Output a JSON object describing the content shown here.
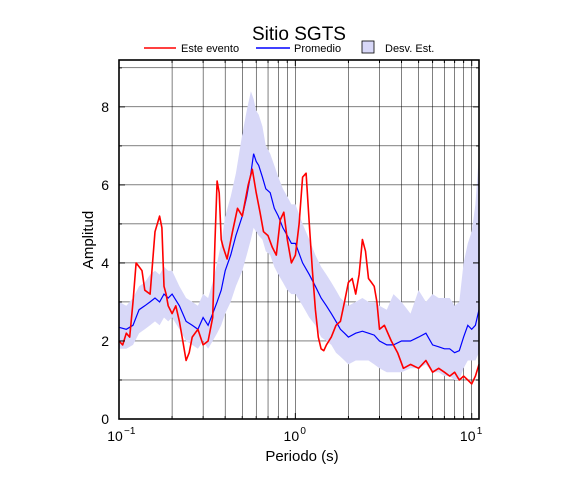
{
  "chart_data": {
    "type": "line",
    "title": "Sitio SGTS",
    "xlabel": "Periodo (s)",
    "ylabel": "Amplitud",
    "x_scale": "log",
    "xlim": [
      0.1,
      11
    ],
    "ylim": [
      0,
      9.2
    ],
    "grid": true,
    "legend_position": "top",
    "x_ticks": [
      {
        "value": 0.1,
        "base": "10",
        "exp": "−1"
      },
      {
        "value": 1,
        "base": "10",
        "exp": "0"
      },
      {
        "value": 10,
        "base": "10",
        "exp": "1"
      }
    ],
    "y_ticks": [
      0,
      2,
      4,
      6,
      8
    ],
    "legend": {
      "este_evento": "Este evento",
      "promedio": "Promedio",
      "desv_est": "Desv. Est."
    },
    "colors": {
      "este_evento": "#ff0000",
      "promedio": "#0000ff",
      "band_fill": "#d8d8f8",
      "band_stroke": "#c0c0f0"
    },
    "series": [
      {
        "name": "Este evento",
        "x": [
          0.1,
          0.105,
          0.11,
          0.115,
          0.12,
          0.125,
          0.13,
          0.135,
          0.14,
          0.15,
          0.16,
          0.17,
          0.175,
          0.18,
          0.185,
          0.19,
          0.2,
          0.21,
          0.22,
          0.23,
          0.24,
          0.25,
          0.26,
          0.28,
          0.3,
          0.32,
          0.34,
          0.35,
          0.36,
          0.37,
          0.38,
          0.39,
          0.41,
          0.44,
          0.47,
          0.5,
          0.54,
          0.57,
          0.6,
          0.63,
          0.66,
          0.7,
          0.74,
          0.78,
          0.82,
          0.86,
          0.9,
          0.95,
          1.0,
          1.05,
          1.1,
          1.15,
          1.2,
          1.25,
          1.3,
          1.35,
          1.4,
          1.45,
          1.5,
          1.6,
          1.7,
          1.8,
          1.9,
          2.0,
          2.1,
          2.2,
          2.3,
          2.4,
          2.5,
          2.6,
          2.7,
          2.8,
          2.9,
          3.0,
          3.2,
          3.5,
          3.8,
          4.1,
          4.5,
          5.0,
          5.5,
          6.0,
          6.5,
          7.0,
          7.5,
          8.0,
          8.5,
          9.0,
          9.5,
          10.0,
          10.5,
          11.0
        ],
        "values": [
          2.0,
          1.9,
          2.2,
          2.1,
          3.0,
          4.0,
          3.9,
          3.8,
          3.3,
          3.2,
          4.8,
          5.2,
          4.9,
          3.4,
          3.2,
          2.9,
          2.7,
          2.9,
          2.5,
          2.0,
          1.5,
          1.7,
          2.1,
          2.3,
          1.9,
          2.0,
          2.6,
          4.5,
          6.1,
          5.8,
          4.6,
          4.4,
          4.1,
          4.8,
          5.4,
          5.2,
          6.0,
          6.4,
          5.8,
          5.3,
          4.8,
          4.7,
          4.4,
          4.2,
          5.1,
          5.3,
          4.6,
          4.0,
          4.2,
          5.0,
          6.2,
          6.3,
          5.0,
          3.8,
          2.8,
          2.1,
          1.8,
          1.75,
          1.9,
          2.1,
          2.4,
          2.5,
          3.0,
          3.5,
          3.6,
          3.2,
          3.7,
          4.6,
          4.3,
          3.6,
          3.5,
          3.4,
          3.0,
          2.3,
          2.4,
          2.0,
          1.7,
          1.3,
          1.4,
          1.3,
          1.5,
          1.2,
          1.3,
          1.2,
          1.1,
          1.2,
          1.0,
          1.1,
          1.0,
          0.9,
          1.1,
          1.4
        ]
      },
      {
        "name": "Promedio",
        "x": [
          0.1,
          0.11,
          0.12,
          0.13,
          0.14,
          0.15,
          0.16,
          0.17,
          0.18,
          0.19,
          0.2,
          0.22,
          0.24,
          0.26,
          0.28,
          0.3,
          0.32,
          0.34,
          0.36,
          0.38,
          0.4,
          0.43,
          0.46,
          0.5,
          0.53,
          0.56,
          0.58,
          0.6,
          0.62,
          0.65,
          0.68,
          0.72,
          0.76,
          0.8,
          0.85,
          0.9,
          0.95,
          1.0,
          1.1,
          1.2,
          1.3,
          1.4,
          1.5,
          1.6,
          1.7,
          1.8,
          1.9,
          2.0,
          2.2,
          2.4,
          2.6,
          2.8,
          3.0,
          3.3,
          3.6,
          4.0,
          4.5,
          5.0,
          5.5,
          6.0,
          6.5,
          7.0,
          7.5,
          8.0,
          8.5,
          9.0,
          9.5,
          10.0,
          10.5,
          11.0
        ],
        "values": [
          2.35,
          2.3,
          2.4,
          2.8,
          2.9,
          3.0,
          3.1,
          3.0,
          3.2,
          3.1,
          3.2,
          2.9,
          2.5,
          2.4,
          2.3,
          2.6,
          2.4,
          2.7,
          3.0,
          3.3,
          3.8,
          4.2,
          4.7,
          5.2,
          5.7,
          6.3,
          6.8,
          6.6,
          6.5,
          6.2,
          5.9,
          5.8,
          5.4,
          5.2,
          4.9,
          4.7,
          4.5,
          4.5,
          4.0,
          3.7,
          3.4,
          3.1,
          2.9,
          2.7,
          2.5,
          2.3,
          2.2,
          2.1,
          2.2,
          2.25,
          2.2,
          2.15,
          2.0,
          1.9,
          1.9,
          2.0,
          2.0,
          2.1,
          2.2,
          1.9,
          1.85,
          1.8,
          1.8,
          1.7,
          1.75,
          2.1,
          2.4,
          2.3,
          2.4,
          2.8
        ]
      }
    ],
    "band": {
      "name": "Desv. Est.",
      "x": [
        0.1,
        0.11,
        0.12,
        0.13,
        0.14,
        0.15,
        0.16,
        0.17,
        0.18,
        0.19,
        0.2,
        0.22,
        0.24,
        0.26,
        0.28,
        0.3,
        0.32,
        0.34,
        0.36,
        0.38,
        0.4,
        0.43,
        0.46,
        0.5,
        0.53,
        0.56,
        0.58,
        0.6,
        0.62,
        0.65,
        0.68,
        0.72,
        0.76,
        0.8,
        0.85,
        0.9,
        0.95,
        1.0,
        1.1,
        1.2,
        1.3,
        1.4,
        1.5,
        1.6,
        1.7,
        1.8,
        1.9,
        2.0,
        2.2,
        2.4,
        2.6,
        2.8,
        3.0,
        3.3,
        3.6,
        4.0,
        4.5,
        5.0,
        5.5,
        6.0,
        6.5,
        7.0,
        7.5,
        8.0,
        8.5,
        9.0,
        9.5,
        10.0,
        10.5,
        11.0
      ],
      "upper": [
        3.0,
        2.9,
        3.1,
        3.4,
        3.5,
        3.7,
        3.8,
        3.7,
        3.9,
        3.8,
        3.8,
        3.4,
        3.1,
        3.0,
        2.9,
        3.2,
        3.1,
        3.5,
        4.0,
        4.5,
        5.2,
        5.7,
        6.3,
        7.3,
        7.9,
        8.4,
        8.2,
        7.9,
        7.8,
        7.5,
        7.0,
        6.8,
        6.5,
        6.2,
        5.9,
        5.7,
        5.5,
        5.5,
        5.0,
        4.6,
        4.2,
        3.9,
        3.7,
        3.5,
        3.3,
        3.1,
        3.0,
        2.9,
        3.0,
        3.1,
        3.0,
        3.0,
        2.9,
        2.8,
        3.2,
        3.0,
        2.7,
        3.3,
        3.0,
        3.2,
        3.1,
        3.1,
        3.1,
        2.9,
        3.0,
        4.0,
        4.5,
        4.8,
        5.5,
        6.8
      ],
      "lower": [
        1.8,
        1.8,
        1.9,
        2.2,
        2.3,
        2.4,
        2.5,
        2.4,
        2.6,
        2.5,
        2.6,
        2.3,
        2.0,
        1.9,
        1.8,
        2.0,
        1.8,
        2.0,
        2.2,
        2.4,
        2.7,
        3.0,
        3.4,
        3.8,
        4.2,
        4.6,
        4.9,
        4.8,
        4.7,
        4.6,
        4.3,
        4.2,
        3.9,
        3.7,
        3.5,
        3.3,
        3.2,
        3.2,
        2.9,
        2.6,
        2.4,
        2.1,
        2.0,
        1.9,
        1.7,
        1.6,
        1.5,
        1.4,
        1.5,
        1.5,
        1.5,
        1.4,
        1.3,
        1.2,
        1.2,
        1.2,
        1.3,
        1.3,
        1.4,
        1.2,
        1.2,
        1.1,
        1.1,
        1.0,
        1.0,
        1.3,
        1.5,
        1.5,
        1.5,
        1.7
      ]
    }
  }
}
